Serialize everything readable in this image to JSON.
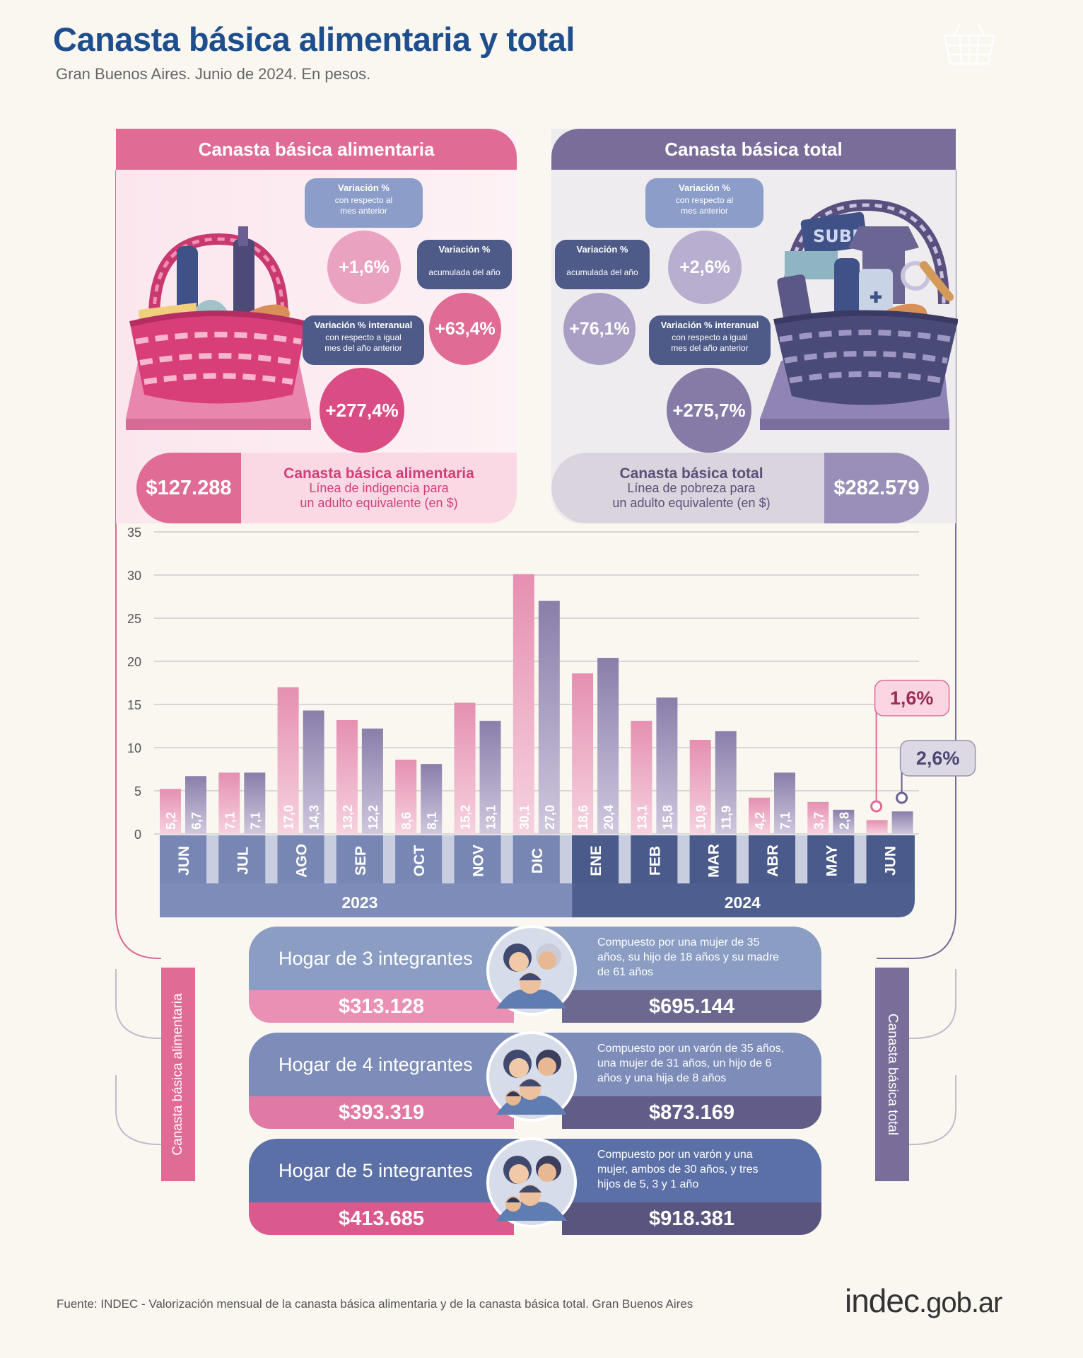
{
  "title": "Canasta básica alimentaria y total",
  "subtitle": "Gran Buenos Aires. Junio de 2024. En pesos.",
  "cba": {
    "header": "Canasta básica alimentaria",
    "var_mensual": {
      "title": "Variación %",
      "sub1": "con respecto al",
      "sub2": "mes anterior",
      "value": "+1,6%"
    },
    "var_acumulada": {
      "title": "Variación %",
      "sub1": "acumulada del año",
      "value": "+63,4%"
    },
    "var_interanual": {
      "title": "Variación % interanual",
      "sub1": "con respecto a igual",
      "sub2": "mes del año anterior",
      "value": "+277,4%"
    },
    "price": "$127.288",
    "price_title": "Canasta básica alimentaria",
    "price_line1": "Línea de indigencia para",
    "price_line2": "un adulto equivalente (en $)",
    "side_label": "Canasta básica alimentaria"
  },
  "cbt": {
    "header": "Canasta básica total",
    "var_mensual": {
      "title": "Variación %",
      "sub1": "con respecto al",
      "sub2": "mes anterior",
      "value": "+2,6%"
    },
    "var_acumulada": {
      "title": "Variación %",
      "sub1": "acumulada del año",
      "value": "+76,1%"
    },
    "var_interanual": {
      "title": "Variación % interanual",
      "sub1": "con respecto a igual",
      "sub2": "mes del año anterior",
      "value": "+275,7%"
    },
    "price": "$282.579",
    "price_title": "Canasta básica total",
    "price_line1": "Línea de pobreza para",
    "price_line2": "un adulto equivalente (en $)",
    "side_label": "Canasta básica total",
    "basket_card_text": "SUBE"
  },
  "chart_data": {
    "type": "bar",
    "categories": [
      "JUN",
      "JUL",
      "AGO",
      "SEP",
      "OCT",
      "NOV",
      "DIC",
      "ENE",
      "FEB",
      "MAR",
      "ABR",
      "MAY",
      "JUN"
    ],
    "years": [
      {
        "label": "2023",
        "from": 0,
        "to": 6
      },
      {
        "label": "2024",
        "from": 7,
        "to": 12
      }
    ],
    "series": [
      {
        "values": [
          5.2,
          7.1,
          17.0,
          13.2,
          8.6,
          15.2,
          30.1,
          18.6,
          13.1,
          10.9,
          4.2,
          3.7,
          1.6
        ],
        "labels": [
          "5,2",
          "7,1",
          "17,0",
          "13,2",
          "8,6",
          "15,2",
          "30,1",
          "18,6",
          "13,1",
          "10,9",
          "4,2",
          "3,7",
          ""
        ]
      },
      {
        "values": [
          6.7,
          7.1,
          14.3,
          12.2,
          8.1,
          13.1,
          27.0,
          20.4,
          15.8,
          11.9,
          7.1,
          2.8,
          2.6
        ],
        "labels": [
          "6,7",
          "7,1",
          "14,3",
          "12,2",
          "8,1",
          "13,1",
          "27,0",
          "20,4",
          "15,8",
          "11,9",
          "7,1",
          "2,8",
          ""
        ]
      }
    ],
    "yticks": [
      "0",
      "5",
      "10",
      "15",
      "20",
      "25",
      "30",
      "35"
    ],
    "ylim": [
      0,
      35
    ],
    "callouts": [
      "1,6%",
      "2,6%"
    ],
    "colors": {
      "cba": "#e58fb1",
      "cbt": "#867aa6",
      "axis2023": "#7d8cb8",
      "axis2024": "#4e5e8f"
    }
  },
  "hogares": [
    {
      "title": "Hogar de 3 integrantes",
      "desc": [
        "Compuesto por una mujer de 35",
        "años, su hijo de 18 años y su madre",
        "de 61 años"
      ],
      "cba": "$313.128",
      "cbt": "$695.144"
    },
    {
      "title": "Hogar de 4 integrantes",
      "desc": [
        "Compuesto por un varón de 35 años,",
        "una mujer de 31 años, un hijo de 6",
        "años y una hija de 8 años"
      ],
      "cba": "$393.319",
      "cbt": "$873.169"
    },
    {
      "title": "Hogar de 5 integrantes",
      "desc": [
        "Compuesto por un varón y una",
        "mujer, ambos de 30 años, y tres",
        "hijos de 5, 3 y 1 año"
      ],
      "cba": "$413.685",
      "cbt": "$918.381"
    }
  ],
  "footer": {
    "source": "Fuente: INDEC - Valorización mensual de la canasta básica alimentaria y de la canasta básica total. Gran Buenos Aires",
    "logo_main": "indec",
    "logo_suffix": ".gob.ar"
  }
}
